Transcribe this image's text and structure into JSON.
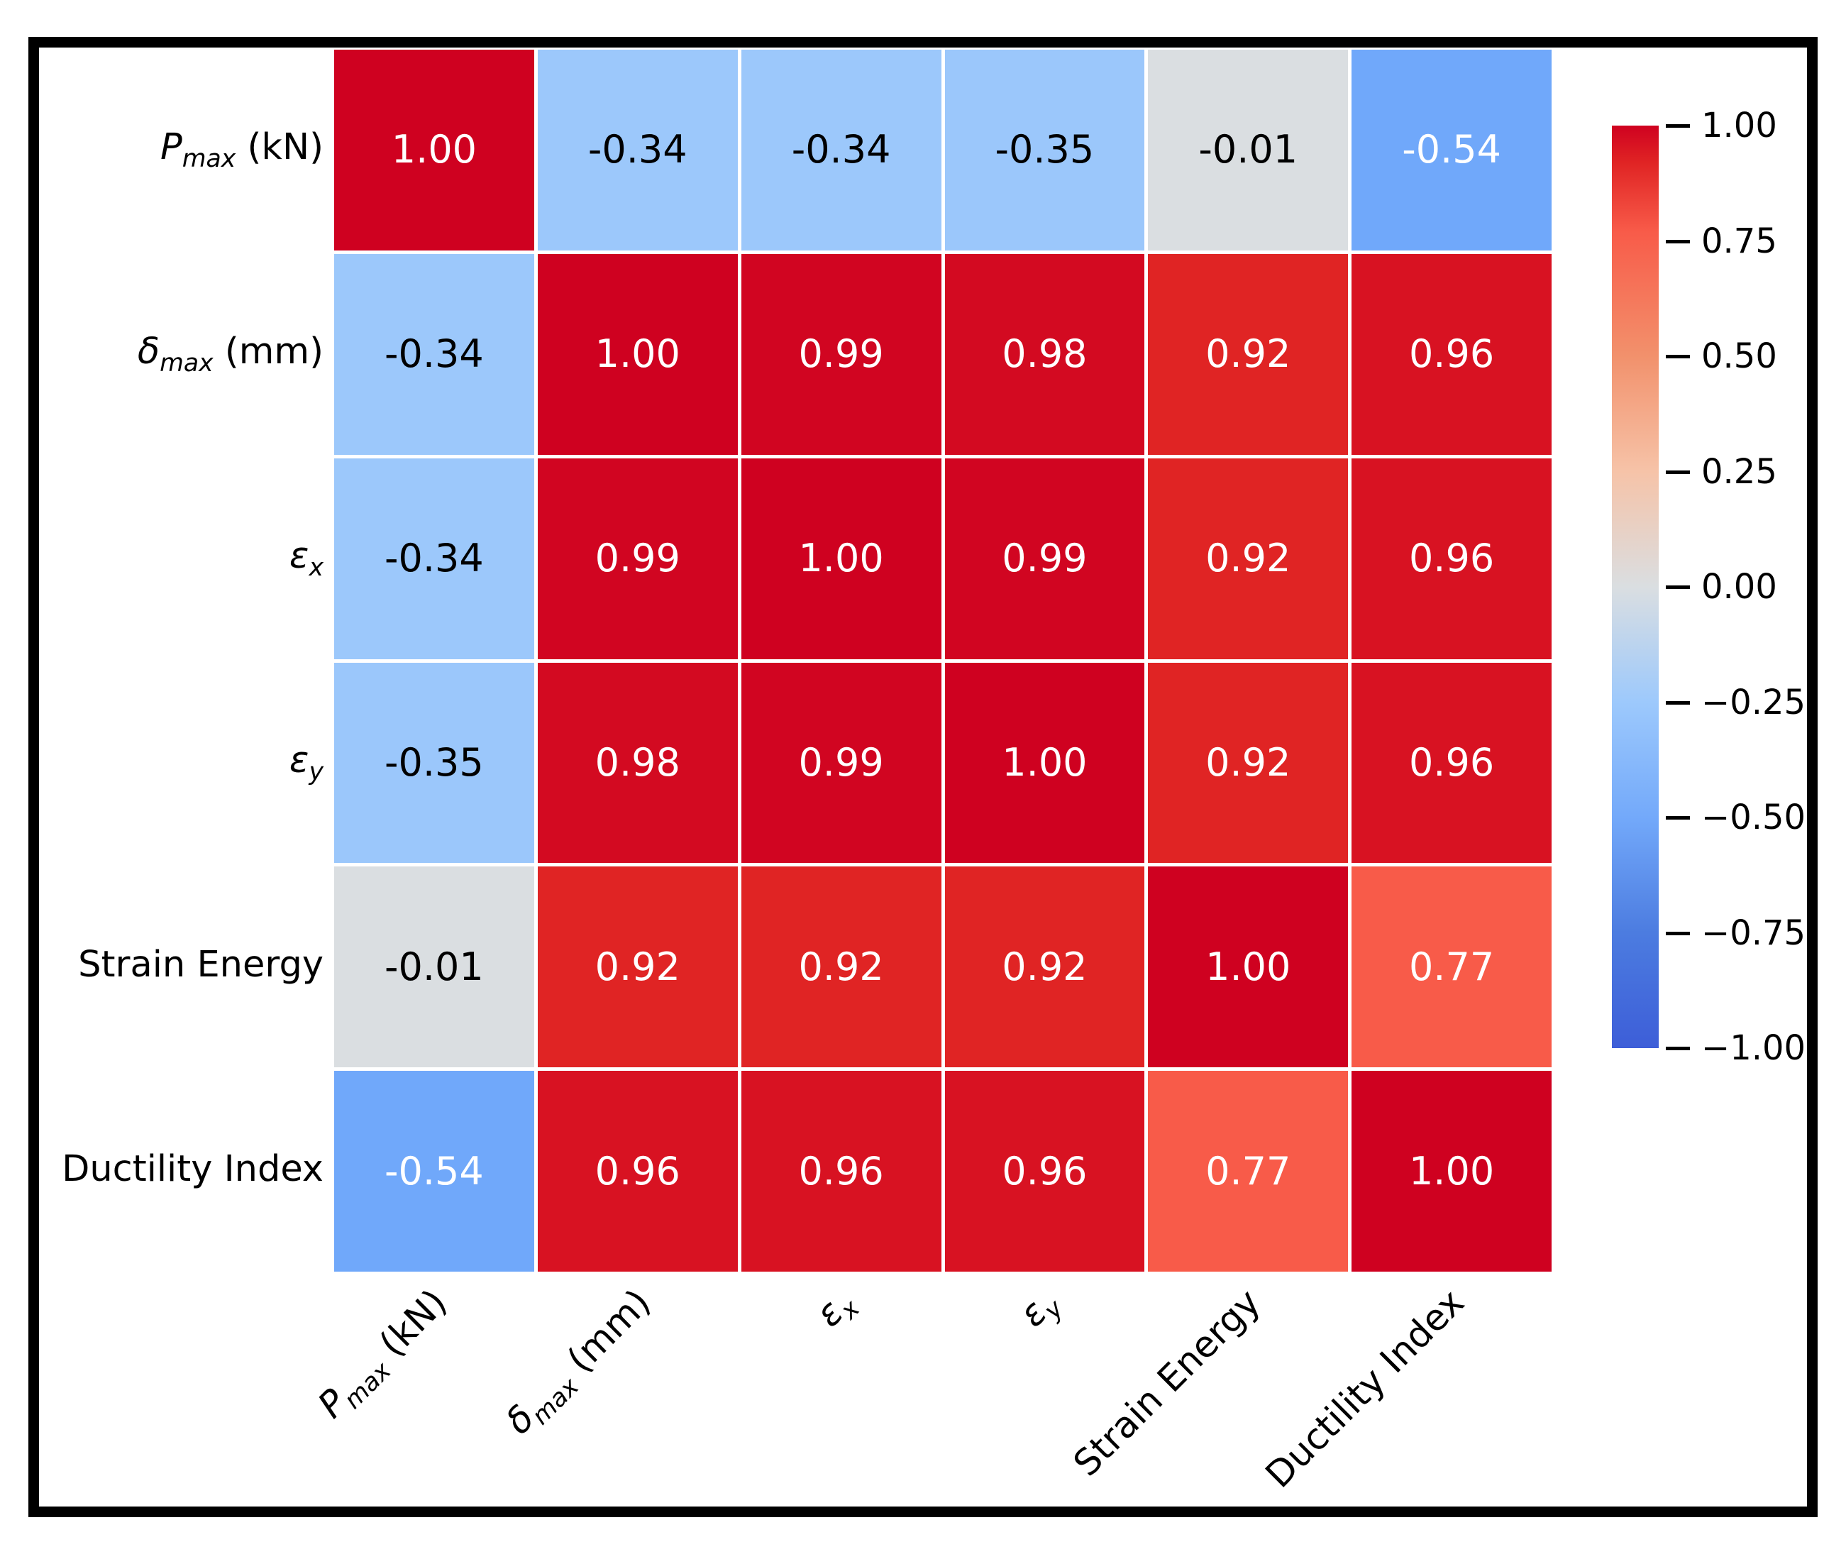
{
  "figure": {
    "background": "#ffffff",
    "border_color": "#000000"
  },
  "chart_data": {
    "type": "heatmap",
    "title": "",
    "categories": [
      "Pmax (kN)",
      "δmax (mm)",
      "εx",
      "εy",
      "Strain Energy",
      "Ductility Index"
    ],
    "label_parts": [
      {
        "main": "P",
        "sub": "max",
        "suffix": " (kN)",
        "italic": true
      },
      {
        "main": "δ",
        "sub": "max",
        "suffix": " (mm)",
        "italic": true
      },
      {
        "main": "ε",
        "sub": "x",
        "suffix": "",
        "italic": true
      },
      {
        "main": "ε",
        "sub": "y",
        "suffix": "",
        "italic": true
      },
      {
        "main": "Strain Energy",
        "sub": "",
        "suffix": "",
        "italic": false
      },
      {
        "main": "Ductility Index",
        "sub": "",
        "suffix": "",
        "italic": false
      }
    ],
    "matrix": [
      [
        1.0,
        -0.34,
        -0.34,
        -0.35,
        -0.01,
        -0.54
      ],
      [
        -0.34,
        1.0,
        0.99,
        0.98,
        0.92,
        0.96
      ],
      [
        -0.34,
        0.99,
        1.0,
        0.99,
        0.92,
        0.96
      ],
      [
        -0.35,
        0.98,
        0.99,
        1.0,
        0.92,
        0.96
      ],
      [
        -0.01,
        0.92,
        0.92,
        0.92,
        1.0,
        0.77
      ],
      [
        -0.54,
        0.96,
        0.96,
        0.96,
        0.77,
        1.0
      ]
    ],
    "cell_text": [
      [
        "1.00",
        "-0.34",
        "-0.34",
        "-0.35",
        "-0.01",
        "-0.54"
      ],
      [
        "-0.34",
        "1.00",
        "0.99",
        "0.98",
        "0.92",
        "0.96"
      ],
      [
        "-0.34",
        "0.99",
        "1.00",
        "0.99",
        "0.92",
        "0.96"
      ],
      [
        "-0.35",
        "0.98",
        "0.99",
        "1.00",
        "0.92",
        "0.96"
      ],
      [
        "-0.01",
        "0.92",
        "0.92",
        "0.92",
        "1.00",
        "0.77"
      ],
      [
        "-0.54",
        "0.96",
        "0.96",
        "0.96",
        "0.77",
        "1.00"
      ]
    ],
    "value_colors": {
      "1.00": "#cf0120",
      "0.99": "#d10521",
      "0.98": "#d30a21",
      "0.96": "#d81222",
      "0.92": "#e02424",
      "0.77": "#f85b49",
      "-0.01": "#dadee1",
      "-0.34": "#9cc8fb",
      "-0.35": "#9bc7fb",
      "-0.54": "#70a8fa"
    },
    "text_color_rule": {
      "threshold": 0.5,
      "light": "#ffffff",
      "dark": "#000000"
    },
    "grid_line_color": "#ffffff",
    "axis_ranges": {
      "value_min": -1,
      "value_max": 1
    },
    "legend_position": "right",
    "colorbar": {
      "min": -1.0,
      "max": 1.0,
      "tick_labels": [
        "1.00",
        "0.75",
        "0.50",
        "0.25",
        "0.00",
        "−0.25",
        "−0.50",
        "−0.75",
        "−1.00"
      ],
      "gradient_stops": [
        [
          "0%",
          "#cf0120"
        ],
        [
          "4%",
          "#e02424"
        ],
        [
          "11.5%",
          "#f85b49"
        ],
        [
          "25%",
          "#f2916c"
        ],
        [
          "37.5%",
          "#f6c3a8"
        ],
        [
          "50%",
          "#dadee1"
        ],
        [
          "62.5%",
          "#9dc9fc"
        ],
        [
          "75%",
          "#73a9fa"
        ],
        [
          "87.5%",
          "#4c7ce0"
        ],
        [
          "100%",
          "#3d5ed8"
        ]
      ]
    }
  }
}
